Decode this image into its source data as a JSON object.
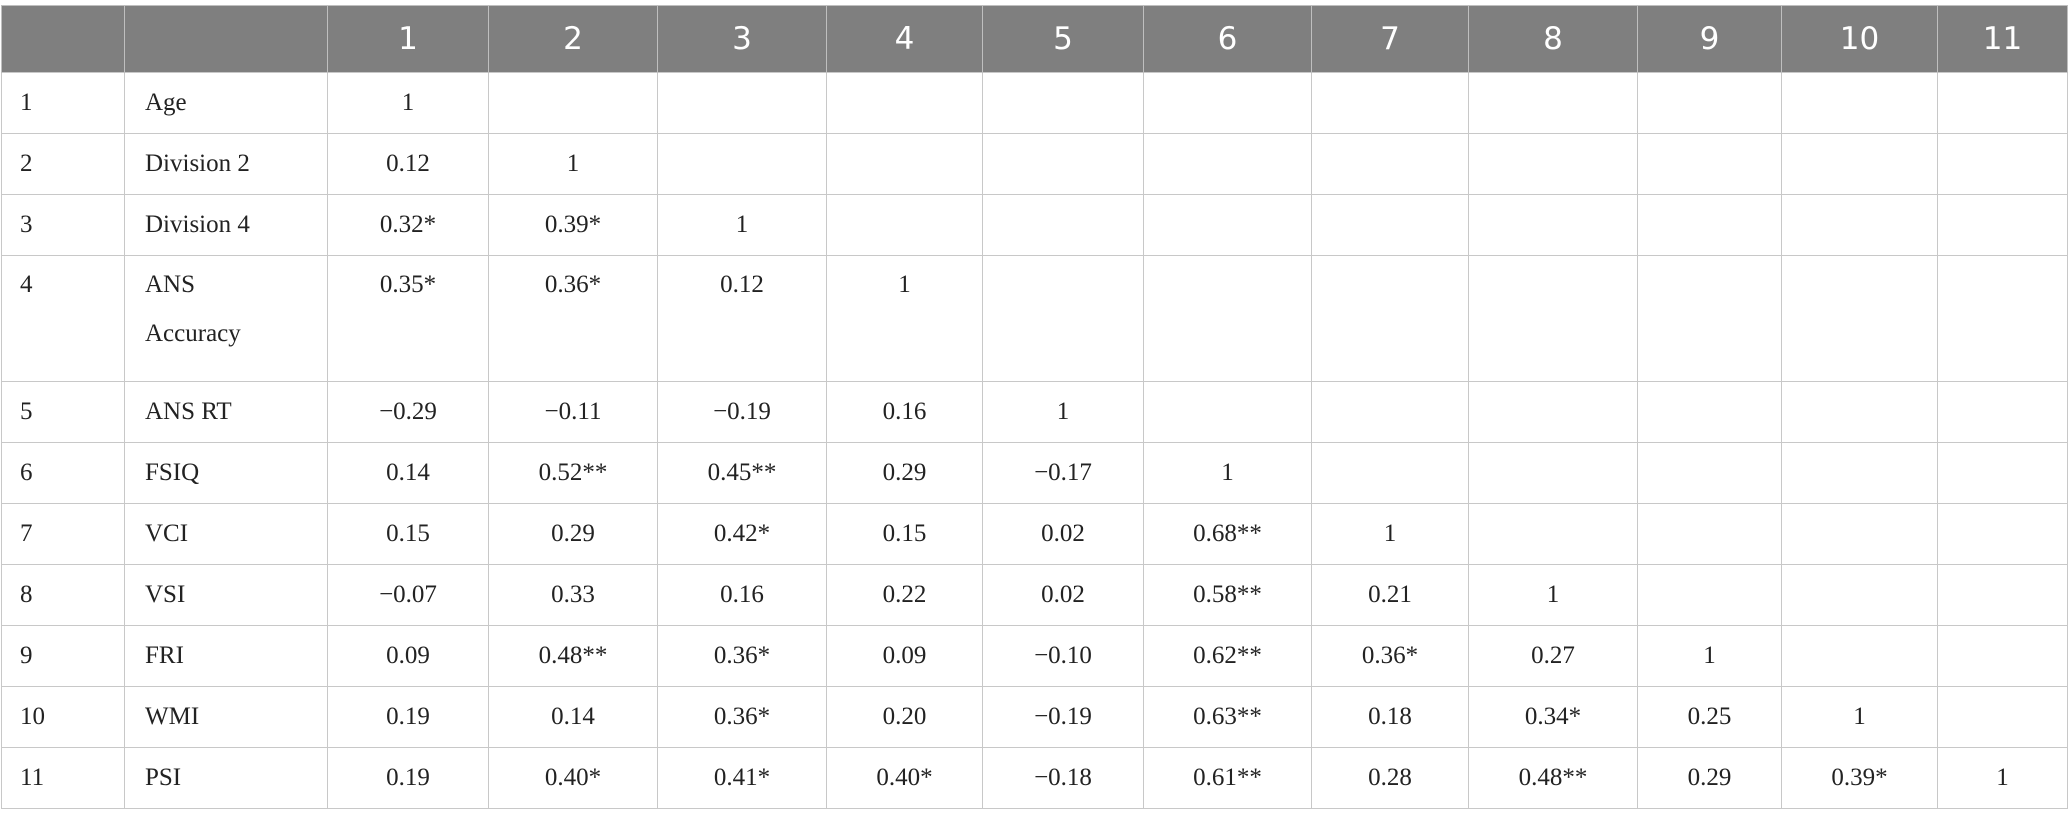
{
  "table": {
    "column_headers": [
      "",
      "",
      "1",
      "2",
      "3",
      "4",
      "5",
      "6",
      "7",
      "8",
      "9",
      "10",
      "11"
    ],
    "rows": [
      {
        "index": "1",
        "label": "Age",
        "values": [
          "1",
          "",
          "",
          "",
          "",
          "",
          "",
          "",
          "",
          "",
          ""
        ]
      },
      {
        "index": "2",
        "label": "Division 2",
        "values": [
          "0.12",
          "1",
          "",
          "",
          "",
          "",
          "",
          "",
          "",
          "",
          ""
        ]
      },
      {
        "index": "3",
        "label": "Division 4",
        "values": [
          "0.32*",
          "0.39*",
          "1",
          "",
          "",
          "",
          "",
          "",
          "",
          "",
          ""
        ]
      },
      {
        "index": "4",
        "label": "ANS Accuracy",
        "values": [
          "0.35*",
          "0.36*",
          "0.12",
          "1",
          "",
          "",
          "",
          "",
          "",
          "",
          ""
        ]
      },
      {
        "index": "5",
        "label": "ANS RT",
        "values": [
          "−0.29",
          "−0.11",
          "−0.19",
          "0.16",
          "1",
          "",
          "",
          "",
          "",
          "",
          ""
        ]
      },
      {
        "index": "6",
        "label": "FSIQ",
        "values": [
          "0.14",
          "0.52**",
          "0.45**",
          "0.29",
          "−0.17",
          "1",
          "",
          "",
          "",
          "",
          ""
        ]
      },
      {
        "index": "7",
        "label": "VCI",
        "values": [
          "0.15",
          "0.29",
          "0.42*",
          "0.15",
          "0.02",
          "0.68**",
          "1",
          "",
          "",
          "",
          ""
        ]
      },
      {
        "index": "8",
        "label": "VSI",
        "values": [
          "−0.07",
          "0.33",
          "0.16",
          "0.22",
          "0.02",
          "0.58**",
          "0.21",
          "1",
          "",
          "",
          ""
        ]
      },
      {
        "index": "9",
        "label": "FRI",
        "values": [
          "0.09",
          "0.48**",
          "0.36*",
          "0.09",
          "−0.10",
          "0.62**",
          "0.36*",
          "0.27",
          "1",
          "",
          ""
        ]
      },
      {
        "index": "10",
        "label": "WMI",
        "values": [
          "0.19",
          "0.14",
          "0.36*",
          "0.20",
          "−0.19",
          "0.63**",
          "0.18",
          "0.34*",
          "0.25",
          "1",
          ""
        ]
      },
      {
        "index": "11",
        "label": "PSI",
        "values": [
          "0.19",
          "0.40*",
          "0.41*",
          "0.40*",
          "−0.18",
          "0.61**",
          "0.28",
          "0.48**",
          "0.29",
          "0.39*",
          "1"
        ]
      }
    ]
  },
  "colors": {
    "header_background": "#7f7f7f",
    "header_text": "#ffffff",
    "grid_line": "#c8c8c8"
  }
}
